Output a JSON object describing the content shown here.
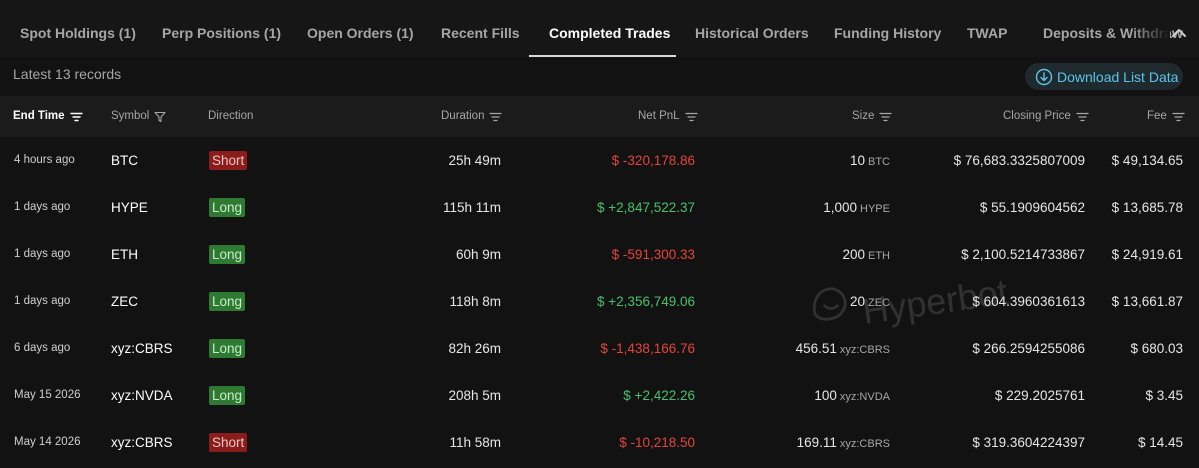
{
  "tabs": [
    {
      "label": "Spot Holdings (1)",
      "active": false
    },
    {
      "label": "Perp Positions (1)",
      "active": false
    },
    {
      "label": "Open Orders (1)",
      "active": false
    },
    {
      "label": "Recent Fills",
      "active": false
    },
    {
      "label": "Completed Trades",
      "active": true
    },
    {
      "label": "Historical Orders",
      "active": false
    },
    {
      "label": "Funding History",
      "active": false
    },
    {
      "label": "TWAP",
      "active": false
    },
    {
      "label": "Deposits & Withdraw",
      "active": false
    }
  ],
  "toolbar": {
    "records_label": "Latest 13 records",
    "download_label": "Download List Data",
    "download_icon": "download-file-icon"
  },
  "columns": {
    "end_time": "End Time",
    "symbol": "Symbol",
    "direction": "Direction",
    "duration": "Duration",
    "net_pnl": "Net PnL",
    "size": "Size",
    "closing_price": "Closing Price",
    "fee": "Fee"
  },
  "rows": [
    {
      "end_time": "4 hours ago",
      "symbol": "BTC",
      "direction": "Short",
      "duration": "25h 49m",
      "net_pnl": "$ -320,178.86",
      "pnl_sign": "neg",
      "size": "10",
      "size_unit": "BTC",
      "closing_price": "$ 76,683.3325807009",
      "fee": "$ 49,134.65"
    },
    {
      "end_time": "1 days ago",
      "symbol": "HYPE",
      "direction": "Long",
      "duration": "115h 11m",
      "net_pnl": "$ +2,847,522.37",
      "pnl_sign": "pos",
      "size": "1,000",
      "size_unit": "HYPE",
      "closing_price": "$ 55.1909604562",
      "fee": "$ 13,685.78"
    },
    {
      "end_time": "1 days ago",
      "symbol": "ETH",
      "direction": "Long",
      "duration": "60h 9m",
      "net_pnl": "$ -591,300.33",
      "pnl_sign": "neg",
      "size": "200",
      "size_unit": "ETH",
      "closing_price": "$ 2,100.5214733867",
      "fee": "$ 24,919.61"
    },
    {
      "end_time": "1 days ago",
      "symbol": "ZEC",
      "direction": "Long",
      "duration": "118h 8m",
      "net_pnl": "$ +2,356,749.06",
      "pnl_sign": "pos",
      "size": "20",
      "size_unit": "ZEC",
      "closing_price": "$ 604.3960361613",
      "fee": "$ 13,661.87"
    },
    {
      "end_time": "6 days ago",
      "symbol": "xyz:CBRS",
      "direction": "Long",
      "duration": "82h 26m",
      "net_pnl": "$ -1,438,166.76",
      "pnl_sign": "neg",
      "size": "456.51",
      "size_unit": "xyz:CBRS",
      "closing_price": "$ 266.2594255086",
      "fee": "$ 680.03"
    },
    {
      "end_time": "May 15 2026",
      "symbol": "xyz:NVDA",
      "direction": "Long",
      "duration": "208h 5m",
      "net_pnl": "$ +2,422.26",
      "pnl_sign": "pos",
      "size": "100",
      "size_unit": "xyz:NVDA",
      "closing_price": "$ 229.2025761",
      "fee": "$ 3.45"
    },
    {
      "end_time": "May 14 2026",
      "symbol": "xyz:CBRS",
      "direction": "Short",
      "duration": "11h 58m",
      "net_pnl": "$ -10,218.50",
      "pnl_sign": "neg",
      "size": "169.11",
      "size_unit": "xyz:CBRS",
      "closing_price": "$ 319.3604224397",
      "fee": "$ 14.45"
    }
  ],
  "watermark": {
    "text": "Hyperbot"
  },
  "colors": {
    "negative": "#e5443b",
    "positive": "#48c16a",
    "short_badge": "#8a1d1b",
    "long_badge": "#2e7a32",
    "accent": "#5ec3e8"
  }
}
